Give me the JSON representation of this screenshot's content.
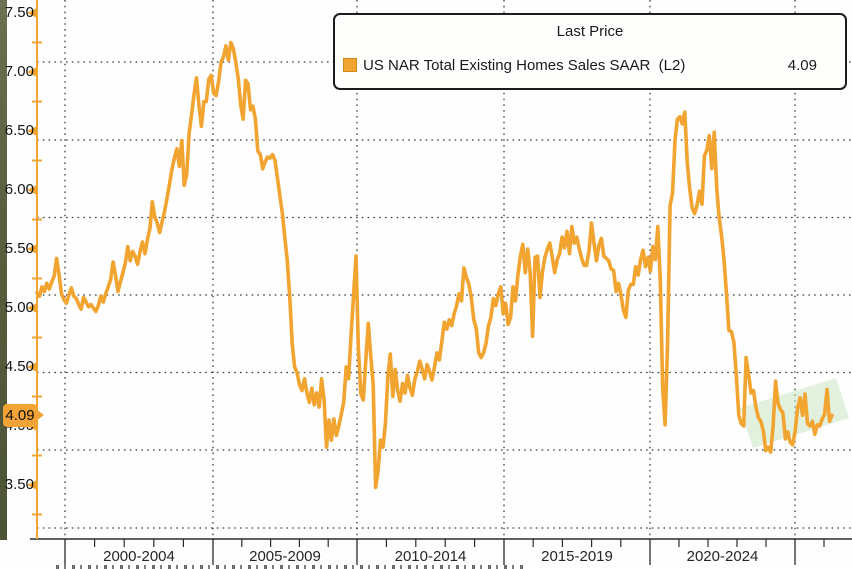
{
  "legend": {
    "title": "Last Price",
    "series_label": "US NAR Total Existing Homes Sales SAAR  (L2)",
    "value": "4.09"
  },
  "axis_marker": {
    "label": "4.09"
  },
  "colors": {
    "line_orange": "#f2a431",
    "marker_orange": "#f2a437",
    "highlight_green": "rgba(203,227,195,0.55)",
    "grid_dot": "#3a3a3a",
    "axis_dark": "#2b2b2b"
  },
  "chart_data": {
    "type": "line",
    "title": "Last Price",
    "legend_position": "top",
    "grid": "dotted",
    "x_axis": {
      "block_labels": [
        "2000-2004",
        "2005-2009",
        "2010-2014",
        "2015-2019",
        "2020-2024"
      ],
      "start_year": 1999,
      "frequency": "monthly"
    },
    "y_axis": {
      "tick_labels": [
        "7.50",
        "7.00",
        "6.50",
        "6.00",
        "5.50",
        "5.00",
        "4.50",
        "4.00",
        "3.50"
      ],
      "minor_tick_step": 0.25,
      "ylim": [
        3.05,
        7.6
      ],
      "last_price_marker": "4.09"
    },
    "annotations": [
      {
        "type": "highlight-box",
        "area": "late-2022 to 2025 low range",
        "color": "rgba(203,227,195,0.55)"
      }
    ],
    "series": [
      {
        "name": "US NAR Total Existing Homes Sales SAAR  (L2)",
        "color": "#f2a431",
        "last_price": 4.09,
        "values": [
          5.13,
          5.1,
          5.18,
          5.14,
          5.21,
          5.16,
          5.22,
          5.27,
          5.42,
          5.28,
          5.12,
          5.07,
          5.04,
          5.11,
          5.17,
          5.1,
          5.08,
          5.03,
          4.99,
          5.09,
          5.05,
          5.01,
          5.03,
          5.0,
          4.97,
          5.02,
          5.1,
          5.05,
          5.12,
          5.18,
          5.24,
          5.39,
          5.28,
          5.14,
          5.22,
          5.3,
          5.38,
          5.52,
          5.4,
          5.48,
          5.44,
          5.37,
          5.48,
          5.56,
          5.46,
          5.58,
          5.67,
          5.9,
          5.77,
          5.72,
          5.64,
          5.73,
          5.82,
          5.93,
          6.05,
          6.18,
          6.27,
          6.35,
          6.2,
          6.42,
          6.04,
          6.13,
          6.48,
          6.64,
          6.81,
          6.95,
          6.72,
          6.54,
          6.75,
          6.75,
          6.94,
          6.97,
          6.82,
          6.8,
          6.92,
          7.08,
          7.13,
          7.22,
          7.1,
          7.25,
          7.2,
          7.08,
          6.95,
          6.72,
          6.6,
          6.93,
          6.9,
          6.68,
          6.71,
          6.6,
          6.33,
          6.3,
          6.18,
          6.24,
          6.28,
          6.27,
          6.3,
          6.25,
          6.1,
          5.95,
          5.8,
          5.6,
          5.4,
          5.1,
          4.7,
          4.5,
          4.45,
          4.35,
          4.3,
          4.4,
          4.28,
          4.2,
          4.32,
          4.18,
          4.28,
          4.16,
          4.4,
          4.22,
          3.82,
          4.05,
          3.88,
          4.06,
          3.92,
          4.0,
          4.1,
          4.2,
          4.5,
          4.4,
          4.78,
          5.1,
          5.44,
          4.65,
          4.27,
          4.22,
          4.56,
          4.87,
          4.6,
          4.35,
          3.48,
          3.62,
          3.88,
          3.82,
          4.02,
          4.42,
          4.61,
          4.25,
          4.48,
          4.3,
          4.21,
          4.36,
          4.28,
          4.43,
          4.32,
          4.26,
          4.4,
          4.46,
          4.55,
          4.48,
          4.4,
          4.52,
          4.46,
          4.39,
          4.5,
          4.62,
          4.56,
          4.72,
          4.88,
          4.82,
          4.9,
          4.85,
          4.95,
          5.02,
          5.12,
          5.06,
          5.34,
          5.26,
          5.2,
          5.09,
          4.9,
          4.83,
          4.62,
          4.58,
          4.62,
          4.7,
          4.85,
          4.92,
          5.08,
          5.02,
          5.12,
          5.18,
          4.95,
          5.04,
          4.86,
          4.92,
          5.18,
          5.06,
          5.28,
          5.44,
          5.54,
          5.3,
          5.5,
          5.3,
          4.76,
          5.43,
          5.44,
          5.09,
          5.31,
          5.43,
          5.5,
          5.55,
          5.43,
          5.3,
          5.41,
          5.46,
          5.6,
          5.51,
          5.65,
          5.46,
          5.69,
          5.55,
          5.6,
          5.5,
          5.42,
          5.36,
          5.36,
          5.49,
          5.72,
          5.55,
          5.4,
          5.53,
          5.59,
          5.44,
          5.42,
          5.4,
          5.33,
          5.32,
          5.14,
          5.21,
          5.11,
          4.98,
          4.92,
          5.15,
          5.2,
          5.2,
          5.35,
          5.28,
          5.41,
          5.49,
          5.35,
          5.43,
          5.31,
          5.52,
          5.41,
          5.69,
          5.26,
          4.32,
          4.01,
          4.71,
          5.87,
          5.97,
          6.42,
          6.6,
          6.62,
          6.56,
          6.66,
          6.24,
          6.01,
          5.85,
          5.8,
          5.87,
          5.99,
          5.88,
          6.29,
          6.34,
          6.46,
          6.18,
          6.49,
          6.02,
          5.77,
          5.61,
          5.41,
          5.12,
          4.81,
          4.8,
          4.71,
          4.43,
          4.09,
          4.02,
          4.0,
          4.58,
          4.44,
          4.28,
          4.3,
          4.16,
          4.07,
          4.04,
          3.96,
          3.79,
          3.82,
          3.78,
          4.0,
          4.38,
          4.19,
          4.14,
          4.11,
          3.89,
          3.95,
          3.86,
          3.84,
          3.96,
          4.15,
          4.24,
          4.09,
          4.27,
          4.02,
          4.0,
          4.04,
          3.93,
          4.01,
          4.0,
          4.06,
          4.1,
          4.31,
          4.04,
          4.09
        ]
      }
    ]
  }
}
